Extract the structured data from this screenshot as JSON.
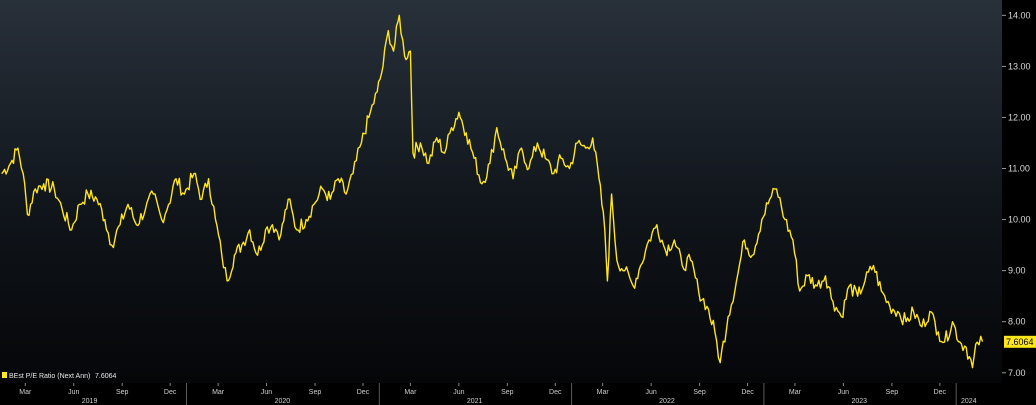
{
  "chart_data": {
    "type": "line",
    "title": "",
    "xlabel": "",
    "ylabel": "",
    "ylim": [
      6.8,
      14.3
    ],
    "y_ticks": [
      "7.00",
      "8.00",
      "9.00",
      "10.00",
      "11.00",
      "12.00",
      "13.00",
      "14.00"
    ],
    "month_ticks": [
      {
        "label": "Mar",
        "date": "2019-03-01"
      },
      {
        "label": "Jun",
        "date": "2019-06-01"
      },
      {
        "label": "Sep",
        "date": "2019-09-01"
      },
      {
        "label": "Dec",
        "date": "2019-12-01"
      },
      {
        "label": "Mar",
        "date": "2020-03-01"
      },
      {
        "label": "Jun",
        "date": "2020-06-01"
      },
      {
        "label": "Sep",
        "date": "2020-09-01"
      },
      {
        "label": "Dec",
        "date": "2020-12-01"
      },
      {
        "label": "Mar",
        "date": "2021-03-01"
      },
      {
        "label": "Jun",
        "date": "2021-06-01"
      },
      {
        "label": "Sep",
        "date": "2021-09-01"
      },
      {
        "label": "Dec",
        "date": "2021-12-01"
      },
      {
        "label": "Mar",
        "date": "2022-03-01"
      },
      {
        "label": "Jun",
        "date": "2022-06-01"
      },
      {
        "label": "Sep",
        "date": "2022-09-01"
      },
      {
        "label": "Dec",
        "date": "2022-12-01"
      },
      {
        "label": "Mar",
        "date": "2023-03-01"
      },
      {
        "label": "Jun",
        "date": "2023-06-01"
      },
      {
        "label": "Sep",
        "date": "2023-09-01"
      },
      {
        "label": "Dec",
        "date": "2023-12-01"
      }
    ],
    "year_labels": [
      {
        "label": "2019",
        "date": "2019-07-01"
      },
      {
        "label": "2020",
        "date": "2020-07-01"
      },
      {
        "label": "2021",
        "date": "2021-07-01"
      },
      {
        "label": "2022",
        "date": "2022-07-01"
      },
      {
        "label": "2023",
        "date": "2023-07-01"
      },
      {
        "label": "2024",
        "date": "2024-01-25"
      }
    ],
    "year_boundaries": [
      "2020-01-01",
      "2021-01-01",
      "2022-01-01",
      "2023-01-01",
      "2024-01-01"
    ],
    "x_range": [
      "2019-01-12",
      "2024-03-28"
    ],
    "line_color": "#ffe61a",
    "series": [
      {
        "name": "BEst P/E Ratio (Next Ann)",
        "last_value": "7.6064",
        "points": [
          [
            "2019-01-15",
            10.9
          ],
          [
            "2019-02-01",
            11.1
          ],
          [
            "2019-02-15",
            11.4
          ],
          [
            "2019-02-25",
            10.9
          ],
          [
            "2019-03-05",
            10.1
          ],
          [
            "2019-03-20",
            10.6
          ],
          [
            "2019-04-05",
            10.7
          ],
          [
            "2019-04-25",
            10.6
          ],
          [
            "2019-05-10",
            10.2
          ],
          [
            "2019-05-28",
            9.8
          ],
          [
            "2019-06-12",
            10.3
          ],
          [
            "2019-06-28",
            10.5
          ],
          [
            "2019-07-15",
            10.4
          ],
          [
            "2019-07-30",
            10.0
          ],
          [
            "2019-08-12",
            9.5
          ],
          [
            "2019-08-28",
            9.9
          ],
          [
            "2019-09-12",
            10.3
          ],
          [
            "2019-09-28",
            9.9
          ],
          [
            "2019-10-15",
            10.2
          ],
          [
            "2019-10-30",
            10.5
          ],
          [
            "2019-11-15",
            10.0
          ],
          [
            "2019-11-28",
            10.3
          ],
          [
            "2019-12-12",
            10.8
          ],
          [
            "2019-12-28",
            10.5
          ],
          [
            "2020-01-15",
            10.9
          ],
          [
            "2020-01-30",
            10.4
          ],
          [
            "2020-02-12",
            10.8
          ],
          [
            "2020-02-25",
            10.0
          ],
          [
            "2020-03-08",
            9.3
          ],
          [
            "2020-03-18",
            8.8
          ],
          [
            "2020-04-01",
            9.3
          ],
          [
            "2020-04-15",
            9.5
          ],
          [
            "2020-04-30",
            9.8
          ],
          [
            "2020-05-15",
            9.3
          ],
          [
            "2020-05-30",
            9.8
          ],
          [
            "2020-06-12",
            9.9
          ],
          [
            "2020-06-28",
            9.7
          ],
          [
            "2020-07-12",
            10.4
          ],
          [
            "2020-07-28",
            9.8
          ],
          [
            "2020-08-15",
            10.0
          ],
          [
            "2020-08-30",
            10.3
          ],
          [
            "2020-09-15",
            10.6
          ],
          [
            "2020-09-30",
            10.4
          ],
          [
            "2020-10-15",
            10.8
          ],
          [
            "2020-10-30",
            10.5
          ],
          [
            "2020-11-12",
            10.9
          ],
          [
            "2020-11-28",
            11.5
          ],
          [
            "2020-12-12",
            12.0
          ],
          [
            "2020-12-28",
            12.5
          ],
          [
            "2021-01-08",
            13.0
          ],
          [
            "2021-01-18",
            13.7
          ],
          [
            "2021-01-28",
            13.3
          ],
          [
            "2021-02-08",
            14.0
          ],
          [
            "2021-02-18",
            13.2
          ],
          [
            "2021-03-01",
            13.3
          ],
          [
            "2021-03-06",
            11.3
          ],
          [
            "2021-03-20",
            11.5
          ],
          [
            "2021-04-05",
            11.1
          ],
          [
            "2021-04-20",
            11.6
          ],
          [
            "2021-05-05",
            11.3
          ],
          [
            "2021-05-18",
            11.8
          ],
          [
            "2021-06-01",
            12.1
          ],
          [
            "2021-06-15",
            11.7
          ],
          [
            "2021-06-30",
            11.2
          ],
          [
            "2021-07-15",
            10.7
          ],
          [
            "2021-07-30",
            11.1
          ],
          [
            "2021-08-12",
            11.8
          ],
          [
            "2021-08-28",
            11.2
          ],
          [
            "2021-09-12",
            10.8
          ],
          [
            "2021-09-28",
            11.4
          ],
          [
            "2021-10-12",
            11.0
          ],
          [
            "2021-10-28",
            11.5
          ],
          [
            "2021-11-12",
            11.2
          ],
          [
            "2021-11-28",
            10.9
          ],
          [
            "2021-12-12",
            11.2
          ],
          [
            "2021-12-28",
            11.0
          ],
          [
            "2022-01-12",
            11.5
          ],
          [
            "2022-01-28",
            11.4
          ],
          [
            "2022-02-10",
            11.6
          ],
          [
            "2022-02-22",
            10.8
          ],
          [
            "2022-03-05",
            9.8
          ],
          [
            "2022-03-10",
            8.8
          ],
          [
            "2022-03-18",
            10.5
          ],
          [
            "2022-03-28",
            9.2
          ],
          [
            "2022-04-12",
            9.0
          ],
          [
            "2022-04-28",
            8.7
          ],
          [
            "2022-05-12",
            9.1
          ],
          [
            "2022-05-28",
            9.6
          ],
          [
            "2022-06-12",
            9.9
          ],
          [
            "2022-06-28",
            9.4
          ],
          [
            "2022-07-15",
            9.6
          ],
          [
            "2022-07-30",
            9.1
          ],
          [
            "2022-08-15",
            9.2
          ],
          [
            "2022-08-30",
            8.6
          ],
          [
            "2022-09-15",
            8.3
          ],
          [
            "2022-09-30",
            7.8
          ],
          [
            "2022-10-10",
            7.2
          ],
          [
            "2022-10-25",
            8.1
          ],
          [
            "2022-11-10",
            8.8
          ],
          [
            "2022-11-25",
            9.6
          ],
          [
            "2022-12-10",
            9.3
          ],
          [
            "2022-12-28",
            10.0
          ],
          [
            "2023-01-12",
            10.4
          ],
          [
            "2023-01-25",
            10.6
          ],
          [
            "2023-02-10",
            10.0
          ],
          [
            "2023-02-25",
            9.6
          ],
          [
            "2023-03-10",
            8.6
          ],
          [
            "2023-03-25",
            8.9
          ],
          [
            "2023-04-12",
            8.7
          ],
          [
            "2023-04-28",
            8.9
          ],
          [
            "2023-05-12",
            8.4
          ],
          [
            "2023-05-28",
            8.1
          ],
          [
            "2023-06-12",
            8.7
          ],
          [
            "2023-06-28",
            8.5
          ],
          [
            "2023-07-12",
            8.8
          ],
          [
            "2023-07-28",
            9.1
          ],
          [
            "2023-08-12",
            8.6
          ],
          [
            "2023-08-28",
            8.3
          ],
          [
            "2023-09-12",
            8.2
          ],
          [
            "2023-09-28",
            8.0
          ],
          [
            "2023-10-12",
            8.2
          ],
          [
            "2023-10-28",
            7.9
          ],
          [
            "2023-11-12",
            8.2
          ],
          [
            "2023-11-28",
            7.8
          ],
          [
            "2023-12-10",
            7.6
          ],
          [
            "2023-12-25",
            8.0
          ],
          [
            "2024-01-08",
            7.6
          ],
          [
            "2024-01-20",
            7.5
          ],
          [
            "2024-02-01",
            7.1
          ],
          [
            "2024-02-10",
            7.6
          ],
          [
            "2024-02-20",
            7.61
          ]
        ]
      }
    ],
    "legend": "bottom-left"
  }
}
